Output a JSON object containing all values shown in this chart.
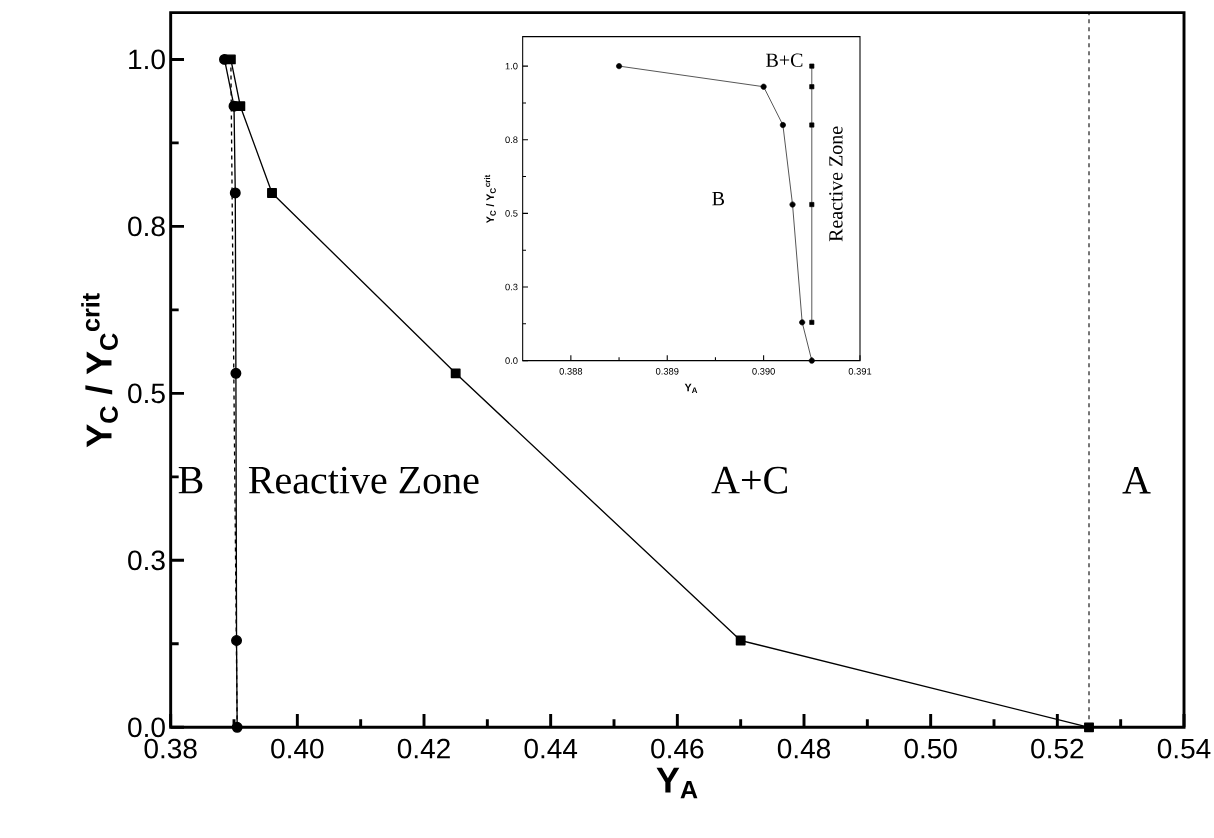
{
  "chart_data": [
    {
      "type": "line",
      "xlabel": "Y$_{A}$",
      "ylabel": "Y$_{C}$ / Y$_{C}$$^{crit}$",
      "xlim": [
        0.38,
        0.54
      ],
      "ylim": [
        0,
        1.07
      ],
      "xticks": [
        {
          "value": 0.38,
          "label": "0.38"
        },
        {
          "value": 0.4,
          "label": "0.40"
        },
        {
          "value": 0.42,
          "label": "0.42"
        },
        {
          "value": 0.44,
          "label": "0.44"
        },
        {
          "value": 0.46,
          "label": "0.46"
        },
        {
          "value": 0.48,
          "label": "0.48"
        },
        {
          "value": 0.5,
          "label": "0.50"
        },
        {
          "value": 0.52,
          "label": "0.52"
        },
        {
          "value": 0.54,
          "label": "0.54"
        }
      ],
      "yticks": [
        {
          "value": 0,
          "label": "0.0"
        },
        {
          "value": 0.25,
          "label": "0.3"
        },
        {
          "value": 0.5,
          "label": "0.5"
        },
        {
          "value": 0.75,
          "label": "0.8"
        },
        {
          "value": 1.0,
          "label": "1.0"
        }
      ],
      "series": [
        {
          "color": "#000000",
          "marker": "circle",
          "line_style": "solid",
          "x": [
            0.3885,
            0.39,
            0.3902,
            0.3903,
            0.3904,
            0.3905
          ],
          "values": [
            1.0,
            0.93,
            0.8,
            0.53,
            0.13,
            0.0
          ]
        },
        {
          "color": "#000000",
          "marker": "square",
          "line_style": "solid",
          "x": [
            0.3895,
            0.391,
            0.396,
            0.425,
            0.47,
            0.525
          ],
          "values": [
            1.0,
            0.93,
            0.8,
            0.53,
            0.13,
            0.0
          ]
        },
        {
          "color": "#000000",
          "marker": "none",
          "line_style": "dashed",
          "x": [
            0.3895,
            0.3905
          ],
          "values": [
            1.0,
            0.0
          ]
        }
      ],
      "ref_lines": [
        {
          "axis": "x",
          "value": 0.525,
          "line_style": "dashed",
          "color": "#000000"
        }
      ],
      "annotations": [
        "B",
        "Reactive Zone",
        "A+C",
        "A"
      ]
    },
    {
      "type": "line",
      "xlabel": "Y$_{A}$",
      "ylabel": "Y$_{C}$ / Y$_{C}$$^{crit}$",
      "xlim": [
        0.3875,
        0.391
      ],
      "ylim": [
        0,
        1.1
      ],
      "xticks": [
        {
          "value": 0.388,
          "label": "0.388"
        },
        {
          "value": 0.389,
          "label": "0.389"
        },
        {
          "value": 0.39,
          "label": "0.390"
        },
        {
          "value": 0.391,
          "label": "0.391"
        }
      ],
      "yticks": [
        {
          "value": 0,
          "label": "0.0"
        },
        {
          "value": 0.25,
          "label": "0.3"
        },
        {
          "value": 0.5,
          "label": "0.5"
        },
        {
          "value": 0.75,
          "label": "0.8"
        },
        {
          "value": 1.0,
          "label": "1.0"
        }
      ],
      "series": [
        {
          "color": "#000000",
          "marker": "circle",
          "line_style": "solid",
          "x": [
            0.3885,
            0.39,
            0.3902,
            0.3903,
            0.3904,
            0.3905
          ],
          "values": [
            1.0,
            0.93,
            0.8,
            0.53,
            0.13,
            0.0
          ]
        },
        {
          "color": "#000000",
          "marker": "square",
          "line_style": "solid",
          "x": [
            0.3905,
            0.3905,
            0.3905,
            0.3905,
            0.3905
          ],
          "values": [
            1.0,
            0.93,
            0.8,
            0.53,
            0.13
          ]
        }
      ],
      "annotations": [
        "B+C",
        "B",
        "Reactive Zone"
      ]
    }
  ]
}
